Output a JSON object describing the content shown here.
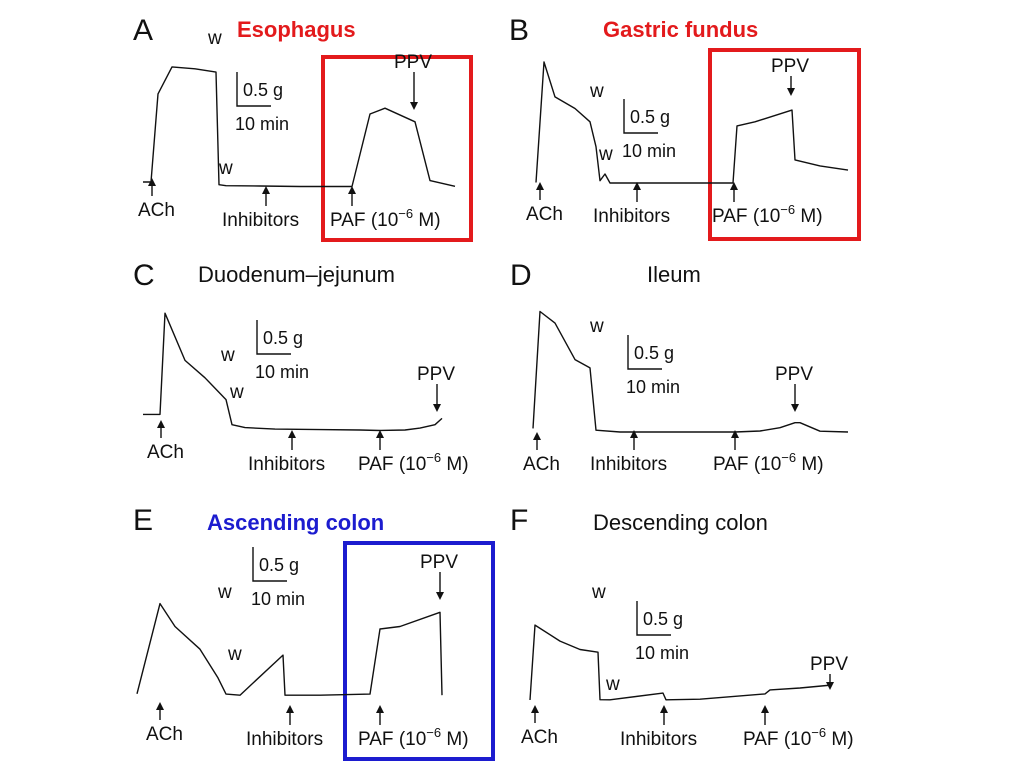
{
  "chart_data": [
    {
      "type": "line",
      "panel": "A",
      "title": "Esophagus",
      "title_color": "#e31a1c",
      "highlight_box_color": "#e31a1c",
      "scale_bar": {
        "force": "0.5 g",
        "time": "10 min"
      },
      "annotations": {
        "ach": "ACh",
        "inhibitors": "Inhibitors",
        "paf": "PAF (10",
        "paf_exp": "−6",
        "paf_unit": " M)",
        "ppv": "PPV",
        "washes": [
          "w",
          "w"
        ]
      },
      "series": [
        {
          "values": [
            0,
            0,
            2.3,
            2.8,
            2.75,
            2.7,
            0.05,
            0.02,
            0,
            0,
            0,
            0,
            0,
            2.0,
            2.05,
            1.75,
            0.2,
            0.01
          ]
        }
      ]
    },
    {
      "type": "line",
      "panel": "B",
      "title": "Gastric fundus",
      "title_color": "#e31a1c",
      "highlight_box_color": "#e31a1c",
      "scale_bar": {
        "force": "0.5 g",
        "time": "10 min"
      },
      "annotations": {
        "ach": "ACh",
        "inhibitors": "Inhibitors",
        "paf": "PAF (10",
        "paf_exp": "−6",
        "paf_unit": " M)",
        "ppv": "PPV",
        "washes": [
          "w",
          "w"
        ]
      },
      "series": [
        {
          "values": [
            0,
            3.0,
            2.4,
            2.0,
            1.8,
            1.2,
            0.05,
            0.15,
            0,
            0,
            0,
            0,
            1.4,
            1.5,
            1.75,
            0.55,
            0.4,
            0.3
          ]
        }
      ]
    },
    {
      "type": "line",
      "panel": "C",
      "title": "Duodenum–jejunum",
      "title_color": "#111111",
      "scale_bar": {
        "force": "0.5 g",
        "time": "10 min"
      },
      "annotations": {
        "ach": "ACh",
        "inhibitors": "Inhibitors",
        "paf": "PAF (10",
        "paf_exp": "−6",
        "paf_unit": " M)",
        "ppv": "PPV",
        "washes": [
          "w",
          "w"
        ]
      },
      "series": [
        {
          "values": [
            0.3,
            0.3,
            2.8,
            1.6,
            1.2,
            0.7,
            0.15,
            0.05,
            0.02,
            0.02,
            0,
            0,
            0,
            0.05,
            0.15,
            0.3
          ]
        }
      ]
    },
    {
      "type": "line",
      "panel": "D",
      "title": "Ileum",
      "title_color": "#111111",
      "scale_bar": {
        "force": "0.5 g",
        "time": "10 min"
      },
      "annotations": {
        "ach": "ACh",
        "inhibitors": "Inhibitors",
        "paf": "PAF (10",
        "paf_exp": "−6",
        "paf_unit": " M)",
        "ppv": "PPV",
        "washes": [
          "w"
        ]
      },
      "series": [
        {
          "values": [
            0.1,
            3.0,
            2.6,
            1.6,
            1.4,
            0.05,
            0,
            0,
            0,
            0,
            0,
            0.05,
            0.2,
            0.35,
            0.05,
            0
          ]
        }
      ]
    },
    {
      "type": "line",
      "panel": "E",
      "title": "Ascending colon",
      "title_color": "#1c1ccf",
      "highlight_box_color": "#1c1ccf",
      "scale_bar": {
        "force": "0.5 g",
        "time": "10 min"
      },
      "annotations": {
        "ach": "ACh",
        "inhibitors": "Inhibitors",
        "paf": "PAF (10",
        "paf_exp": "−6",
        "paf_unit": " M)",
        "ppv": "PPV",
        "washes": [
          "w",
          "w"
        ]
      },
      "series": [
        {
          "values": [
            0.1,
            2.7,
            2.0,
            1.4,
            0.3,
            0.05,
            0.02,
            1.2,
            0.02,
            0.02,
            0.05,
            2.0,
            2.0,
            2.1,
            0.02
          ]
        }
      ]
    },
    {
      "type": "line",
      "panel": "F",
      "title": "Descending colon",
      "title_color": "#111111",
      "scale_bar": {
        "force": "0.5 g",
        "time": "10 min"
      },
      "annotations": {
        "ach": "ACh",
        "inhibitors": "Inhibitors",
        "paf": "PAF (10",
        "paf_exp": "−6",
        "paf_unit": " M)",
        "ppv": "PPV",
        "washes": [
          "w",
          "w"
        ]
      },
      "series": [
        {
          "values": [
            0,
            2.2,
            1.7,
            1.5,
            1.4,
            0.02,
            0.01,
            0.2,
            0.01,
            0.02,
            0.3,
            0.3,
            0.35
          ]
        }
      ]
    }
  ]
}
